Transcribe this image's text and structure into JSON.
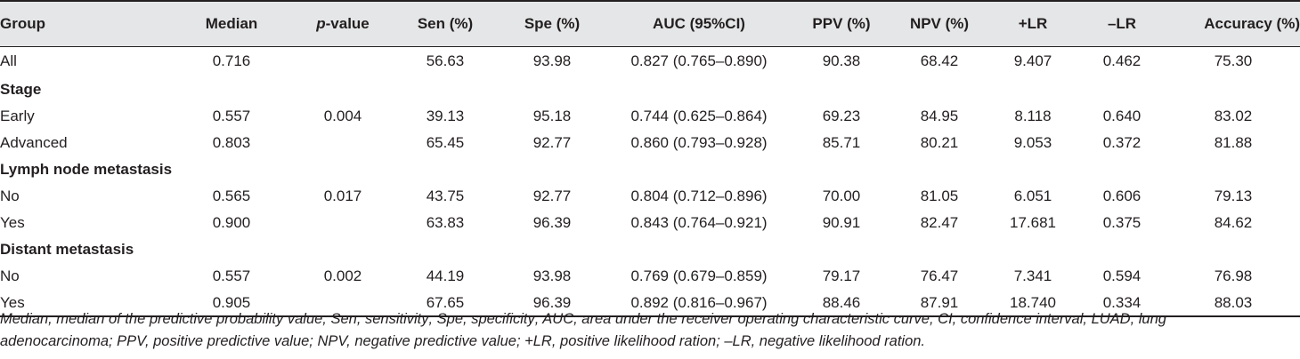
{
  "table": {
    "headers": {
      "group": "Group",
      "median": "Median",
      "p_letter": "p",
      "p_rest": "-value",
      "sen": "Sen (%)",
      "spe": "Spe (%)",
      "auc": "AUC (95%CI)",
      "ppv": "PPV (%)",
      "npv": "NPV (%)",
      "plr": "+LR",
      "nlr": "–LR",
      "accuracy": "Accuracy (%)"
    },
    "rows": [
      {
        "kind": "data",
        "group": "All",
        "median": "0.716",
        "p": "",
        "sen": "56.63",
        "spe": "93.98",
        "auc": "0.827 (0.765–0.890)",
        "ppv": "90.38",
        "npv": "68.42",
        "plr": "9.407",
        "nlr": "0.462",
        "accuracy": "75.30"
      },
      {
        "kind": "section",
        "group": "Stage"
      },
      {
        "kind": "sub",
        "group": "Early",
        "median": "0.557",
        "p": "0.004",
        "sen": "39.13",
        "spe": "95.18",
        "auc": "0.744 (0.625–0.864)",
        "ppv": "69.23",
        "npv": "84.95",
        "plr": "8.118",
        "nlr": "0.640",
        "accuracy": "83.02"
      },
      {
        "kind": "sub",
        "group": "Advanced",
        "median": "0.803",
        "p": "",
        "sen": "65.45",
        "spe": "92.77",
        "auc": "0.860 (0.793–0.928)",
        "ppv": "85.71",
        "npv": "80.21",
        "plr": "9.053",
        "nlr": "0.372",
        "accuracy": "81.88"
      },
      {
        "kind": "section",
        "group": "Lymph node metastasis"
      },
      {
        "kind": "sub",
        "group": "No",
        "median": "0.565",
        "p": "0.017",
        "sen": "43.75",
        "spe": "92.77",
        "auc": "0.804 (0.712–0.896)",
        "ppv": "70.00",
        "npv": "81.05",
        "plr": "6.051",
        "nlr": "0.606",
        "accuracy": "79.13"
      },
      {
        "kind": "sub",
        "group": "Yes",
        "median": "0.900",
        "p": "",
        "sen": "63.83",
        "spe": "96.39",
        "auc": "0.843 (0.764–0.921)",
        "ppv": "90.91",
        "npv": "82.47",
        "plr": "17.681",
        "nlr": "0.375",
        "accuracy": "84.62"
      },
      {
        "kind": "section",
        "group": "Distant metastasis"
      },
      {
        "kind": "sub",
        "group": "No",
        "median": "0.557",
        "p": "0.002",
        "sen": "44.19",
        "spe": "93.98",
        "auc": "0.769 (0.679–0.859)",
        "ppv": "79.17",
        "npv": "76.47",
        "plr": "7.341",
        "nlr": "0.594",
        "accuracy": "76.98"
      },
      {
        "kind": "sub",
        "group": "Yes",
        "median": "0.905",
        "p": "",
        "sen": "67.65",
        "spe": "96.39",
        "auc": "0.892 (0.816–0.967)",
        "ppv": "88.46",
        "npv": "87.91",
        "plr": "18.740",
        "nlr": "0.334",
        "accuracy": "88.03"
      }
    ]
  },
  "footnote": {
    "line1": "Median, median of the predictive probability value; Sen, sensitivity; Spe, specificity; AUC, area under the receiver operating characteristic curve; CI, confidence interval; LUAD, lung",
    "line2": "adenocarcinoma; PPV, positive predictive value; NPV, negative predictive value; +LR, positive likelihood ration; –LR, negative likelihood ration."
  },
  "colors": {
    "header_background": "#e5e6e7",
    "text": "#231f20",
    "rule": "#231f20"
  }
}
